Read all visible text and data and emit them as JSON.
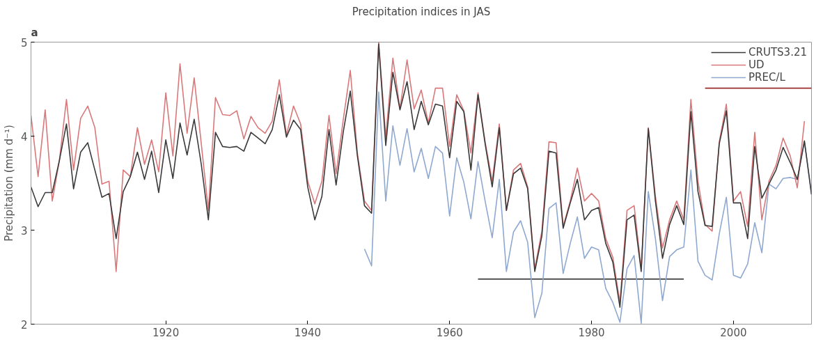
{
  "chart_data": {
    "type": "line",
    "title": "Precipitation indices in JAS",
    "ylabel": "Precipitation (mm d⁻¹)",
    "annotations": [
      "a"
    ],
    "x": [
      1901,
      1902,
      1903,
      1904,
      1905,
      1906,
      1907,
      1908,
      1909,
      1910,
      1911,
      1912,
      1913,
      1914,
      1915,
      1916,
      1917,
      1918,
      1919,
      1920,
      1921,
      1922,
      1923,
      1924,
      1925,
      1926,
      1927,
      1928,
      1929,
      1930,
      1931,
      1932,
      1933,
      1934,
      1935,
      1936,
      1937,
      1938,
      1939,
      1940,
      1941,
      1942,
      1943,
      1944,
      1945,
      1946,
      1947,
      1948,
      1949,
      1950,
      1951,
      1952,
      1953,
      1954,
      1955,
      1956,
      1957,
      1958,
      1959,
      1960,
      1961,
      1962,
      1963,
      1964,
      1965,
      1966,
      1967,
      1968,
      1969,
      1970,
      1971,
      1972,
      1973,
      1974,
      1975,
      1976,
      1977,
      1978,
      1979,
      1980,
      1981,
      1982,
      1983,
      1984,
      1985,
      1986,
      1987,
      1988,
      1989,
      1990,
      1991,
      1992,
      1993,
      1994,
      1995,
      1996,
      1997,
      1998,
      1999,
      2000,
      2001,
      2002,
      2003,
      2004,
      2005,
      2006,
      2007,
      2008,
      2009,
      2010,
      2011
    ],
    "series": [
      {
        "name": "CRUTS3.21",
        "color": "#3a3a3a",
        "values": [
          3.46,
          3.25,
          3.4,
          3.4,
          3.74,
          4.13,
          3.44,
          3.83,
          3.93,
          3.64,
          3.35,
          3.39,
          2.91,
          3.41,
          3.57,
          3.83,
          3.54,
          3.84,
          3.4,
          3.96,
          3.55,
          4.14,
          3.8,
          4.18,
          3.7,
          3.11,
          4.04,
          3.89,
          3.88,
          3.89,
          3.84,
          4.04,
          3.98,
          3.92,
          4.07,
          4.44,
          3.99,
          4.17,
          4.07,
          3.46,
          3.11,
          3.36,
          4.07,
          3.48,
          4.04,
          4.48,
          3.79,
          3.26,
          3.18,
          4.98,
          3.9,
          4.68,
          4.28,
          4.58,
          4.07,
          4.37,
          4.12,
          4.34,
          4.32,
          3.77,
          4.37,
          4.26,
          3.64,
          4.44,
          3.92,
          3.46,
          4.09,
          3.21,
          3.6,
          3.66,
          3.44,
          2.56,
          2.94,
          3.84,
          3.82,
          3.02,
          3.29,
          3.54,
          3.11,
          3.21,
          3.24,
          2.86,
          2.66,
          2.18,
          3.11,
          3.16,
          2.56,
          4.08,
          3.31,
          2.7,
          3.06,
          3.26,
          3.06,
          4.26,
          3.41,
          3.05,
          3.04,
          3.92,
          4.27,
          3.29,
          3.29,
          2.91,
          3.89,
          3.34,
          3.49,
          3.64,
          3.88,
          3.72,
          3.54,
          3.95,
          3.38
        ]
      },
      {
        "name": "UD",
        "color": "#d9787a",
        "values": [
          4.22,
          3.57,
          4.28,
          3.31,
          3.74,
          4.39,
          3.64,
          4.19,
          4.32,
          4.09,
          3.49,
          3.52,
          2.56,
          3.64,
          3.57,
          4.09,
          3.7,
          3.96,
          3.62,
          4.46,
          3.79,
          4.77,
          4.03,
          4.62,
          3.92,
          3.21,
          4.41,
          4.23,
          4.22,
          4.27,
          3.97,
          4.21,
          4.09,
          4.03,
          4.16,
          4.6,
          4.01,
          4.32,
          4.13,
          3.52,
          3.28,
          3.52,
          4.22,
          3.6,
          4.17,
          4.7,
          3.82,
          3.31,
          3.21,
          5.0,
          3.99,
          4.83,
          4.29,
          4.81,
          4.29,
          4.49,
          4.14,
          4.51,
          4.51,
          3.89,
          4.44,
          4.27,
          3.82,
          4.46,
          3.94,
          3.52,
          4.13,
          3.21,
          3.64,
          3.71,
          3.46,
          2.59,
          2.99,
          3.94,
          3.93,
          3.04,
          3.31,
          3.66,
          3.31,
          3.39,
          3.31,
          2.91,
          2.71,
          2.23,
          3.21,
          3.26,
          2.59,
          4.09,
          3.36,
          2.81,
          3.11,
          3.31,
          3.11,
          4.39,
          3.52,
          3.06,
          2.99,
          3.94,
          4.34,
          3.31,
          3.41,
          3.04,
          4.04,
          3.11,
          3.52,
          3.69,
          3.98,
          3.79,
          3.45,
          4.16,
          null
        ]
      },
      {
        "name": "PREC/L",
        "color": "#8fa8d0",
        "values": [
          null,
          null,
          null,
          null,
          null,
          null,
          null,
          null,
          null,
          null,
          null,
          null,
          null,
          null,
          null,
          null,
          null,
          null,
          null,
          null,
          null,
          null,
          null,
          null,
          null,
          null,
          null,
          null,
          null,
          null,
          null,
          null,
          null,
          null,
          null,
          null,
          null,
          null,
          null,
          null,
          null,
          null,
          null,
          null,
          null,
          null,
          null,
          2.8,
          2.62,
          4.47,
          3.31,
          4.11,
          3.69,
          4.08,
          3.62,
          3.87,
          3.55,
          3.89,
          3.82,
          3.15,
          3.77,
          3.51,
          3.12,
          3.73,
          3.31,
          2.92,
          3.54,
          2.56,
          2.98,
          3.1,
          2.87,
          2.07,
          2.33,
          3.23,
          3.29,
          2.54,
          2.86,
          3.14,
          2.7,
          2.82,
          2.79,
          2.38,
          2.23,
          2.02,
          2.59,
          2.73,
          2.01,
          3.41,
          2.91,
          2.25,
          2.72,
          2.79,
          2.82,
          3.64,
          2.67,
          2.52,
          2.47,
          2.96,
          3.35,
          2.52,
          2.49,
          2.64,
          3.08,
          2.76,
          3.49,
          3.44,
          3.55,
          3.56,
          3.54,
          3.94,
          3.38
        ]
      },
      {
        "type": "line",
        "color": "#222222",
        "x": [
          1964,
          1993
        ],
        "values": [
          2.48,
          2.48
        ]
      },
      {
        "type": "line",
        "color": "#9b2b2b",
        "x": [
          1996,
          2011
        ],
        "values": [
          4.51,
          4.51
        ]
      }
    ],
    "xlim": [
      1901,
      2011
    ],
    "ylim": [
      2,
      5
    ],
    "xticks": [
      1920,
      1940,
      1960,
      1980,
      2000
    ],
    "yticks": [
      2,
      3,
      4,
      5
    ],
    "grid": false,
    "legend": "top right",
    "line_style": "solid"
  }
}
